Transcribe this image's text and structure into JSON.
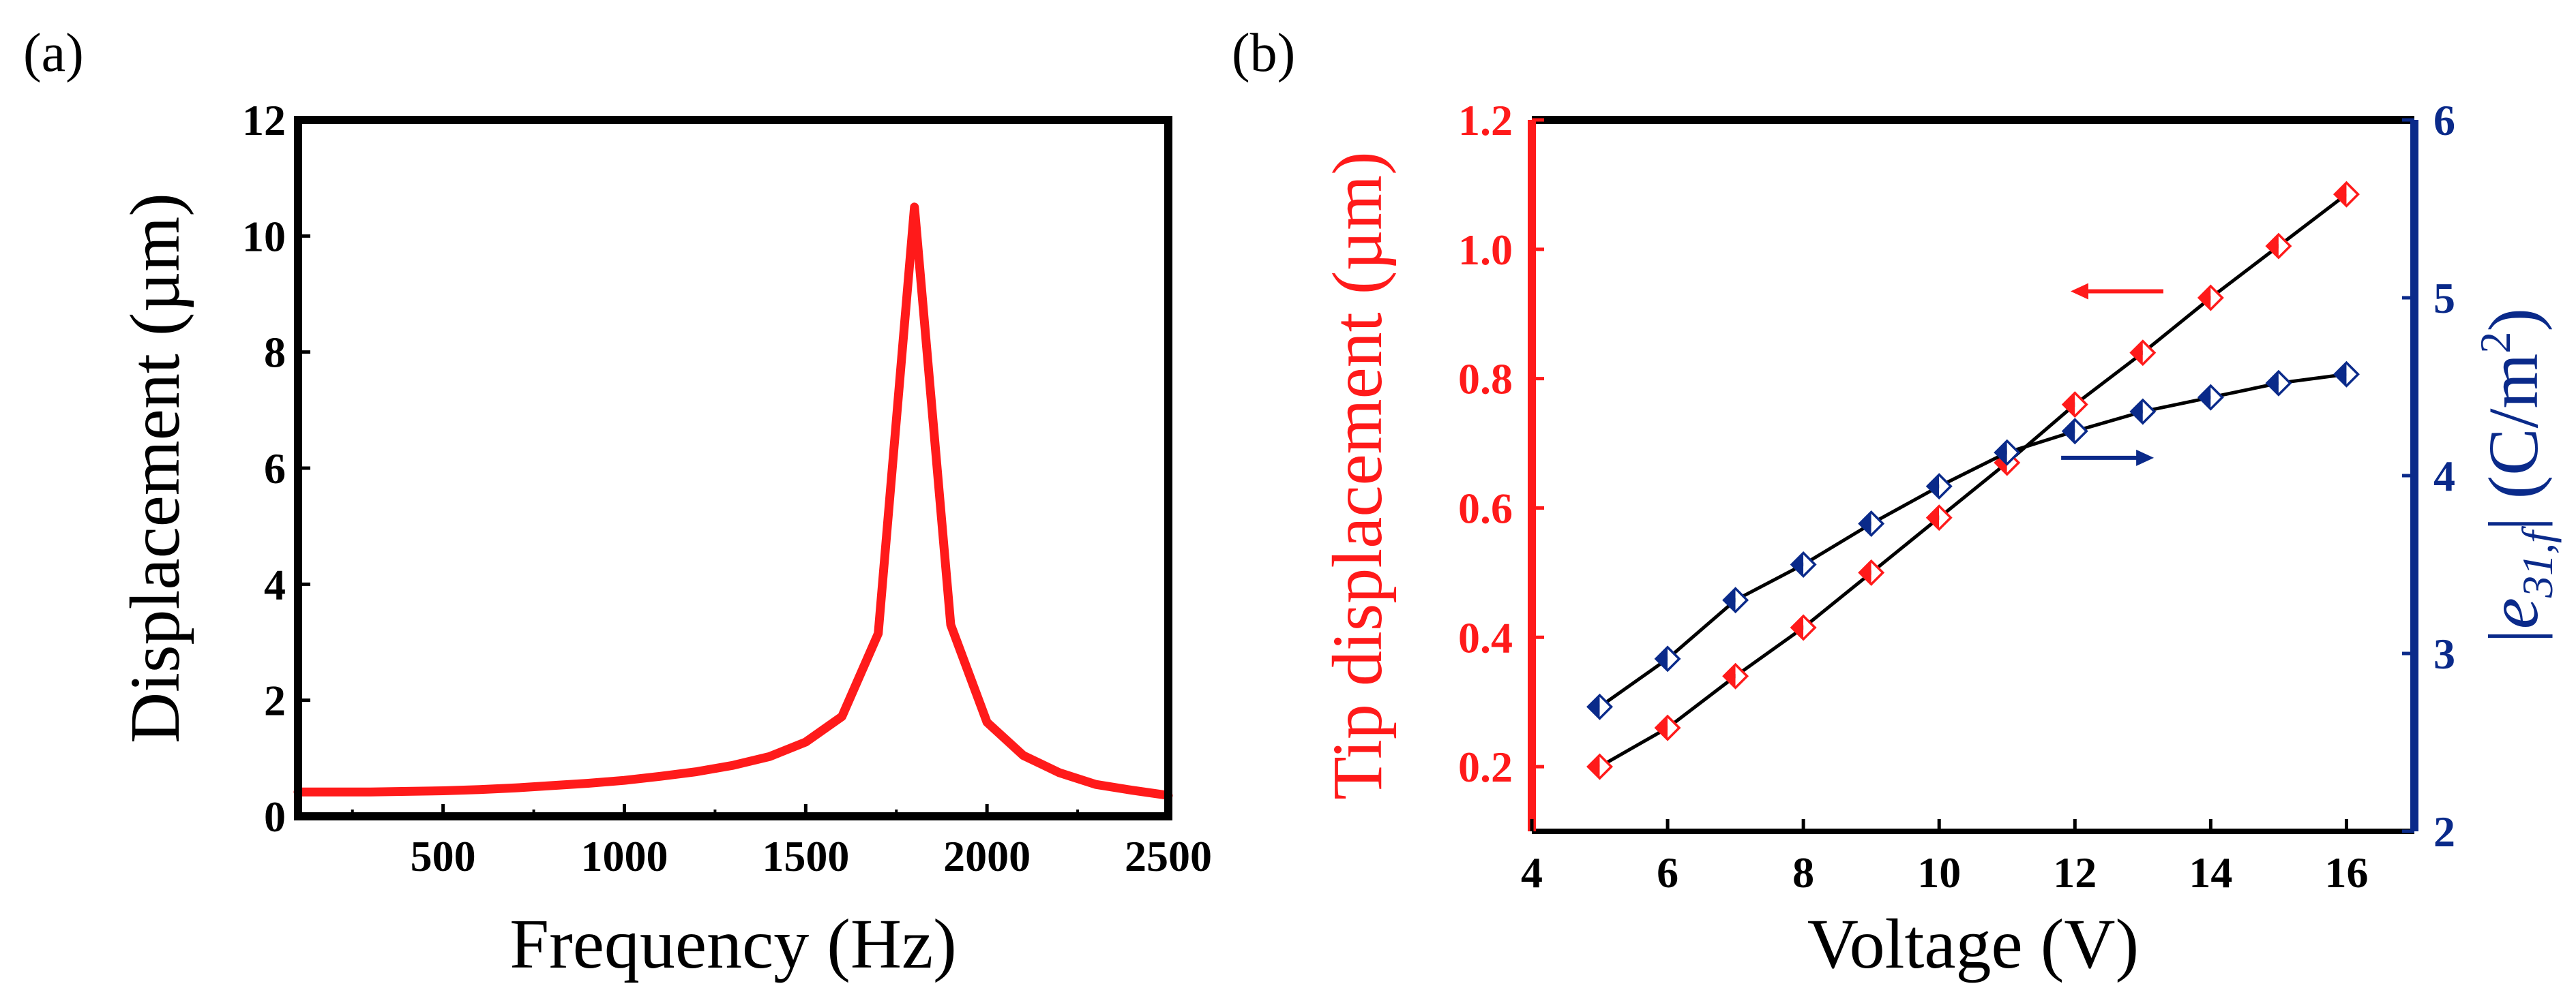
{
  "colors": {
    "red": "#ff1a1a",
    "blue": "#0a2a8a",
    "black": "#000000"
  },
  "chart_data": [
    {
      "id": "a",
      "type": "line",
      "panel_label": "(a)",
      "title": "",
      "xlabel": "Frequency (Hz)",
      "ylabel": "Displacement (µm)",
      "xlim": [
        100,
        2500
      ],
      "ylim": [
        0,
        12
      ],
      "xticks": [
        500,
        1000,
        1500,
        2000,
        2500
      ],
      "yticks": [
        0,
        2,
        4,
        6,
        8,
        10,
        12
      ],
      "series": [
        {
          "name": "Displacement",
          "color": "#ff1a1a",
          "x": [
            100,
            200,
            300,
            400,
            500,
            600,
            700,
            800,
            900,
            1000,
            1100,
            1200,
            1300,
            1400,
            1500,
            1600,
            1700,
            1800,
            1900,
            2000,
            2100,
            2200,
            2300,
            2400,
            2500
          ],
          "y": [
            0.42,
            0.42,
            0.42,
            0.43,
            0.44,
            0.46,
            0.49,
            0.53,
            0.57,
            0.62,
            0.69,
            0.77,
            0.88,
            1.03,
            1.28,
            1.72,
            3.15,
            10.5,
            3.3,
            1.62,
            1.05,
            0.75,
            0.55,
            0.45,
            0.36
          ]
        }
      ]
    },
    {
      "id": "b",
      "type": "line",
      "panel_label": "(b)",
      "title": "",
      "xlabel": "Voltage (V)",
      "ylabel_left": "Tip displacement (µm)",
      "ylabel_right_prefix": "|",
      "ylabel_right_var": "e",
      "ylabel_right_sub": "31,f",
      "ylabel_right_unit": "| (C/m",
      "ylabel_right_sup": "2",
      "ylabel_right_end": ")",
      "xlim": [
        4,
        17
      ],
      "ylim_left": [
        0.1,
        1.2
      ],
      "ylim_right": [
        2,
        6
      ],
      "xticks": [
        4,
        6,
        8,
        10,
        12,
        14,
        16
      ],
      "yticks_left": [
        "0.2",
        "0.4",
        "0.6",
        "0.8",
        "1.0",
        "1.2"
      ],
      "yticks_right": [
        2,
        3,
        4,
        5,
        6
      ],
      "series": [
        {
          "name": "Tip displacement",
          "axis": "left",
          "color": "#ff1a1a",
          "marker": "half-filled diamond",
          "x": [
            5,
            6,
            7,
            8,
            9,
            10,
            11,
            12,
            13,
            14,
            15,
            16
          ],
          "y": [
            0.2,
            0.26,
            0.34,
            0.415,
            0.5,
            0.585,
            0.67,
            0.76,
            0.84,
            0.925,
            1.005,
            1.085
          ]
        },
        {
          "name": "|e31,f|",
          "axis": "right",
          "color": "#0a2a8a",
          "marker": "half-filled diamond",
          "x": [
            5,
            6,
            7,
            8,
            9,
            10,
            11,
            12,
            13,
            14,
            15,
            16
          ],
          "y": [
            2.7,
            2.97,
            3.3,
            3.5,
            3.73,
            3.94,
            4.13,
            4.25,
            4.36,
            4.44,
            4.52,
            4.57
          ]
        }
      ],
      "annotations": [
        {
          "text": "←",
          "color": "#ff1a1a",
          "points_to": "left axis",
          "near_x": 12.7,
          "near_y_left": 0.935
        },
        {
          "text": "→",
          "color": "#0a2a8a",
          "points_to": "right axis",
          "near_x": 12.4,
          "near_y_right": 4.1
        }
      ]
    }
  ]
}
